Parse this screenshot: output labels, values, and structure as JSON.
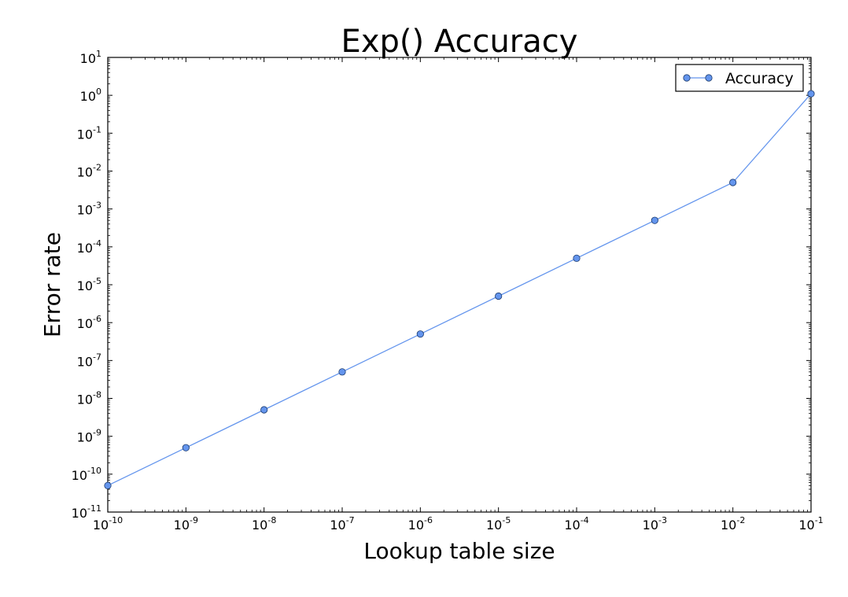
{
  "chart_data": {
    "type": "line",
    "title": "Exp() Accuracy",
    "xlabel": "Lookup table size",
    "ylabel": "Error rate",
    "xscale": "log",
    "yscale": "log",
    "xlim": [
      1e-10,
      0.1
    ],
    "ylim": [
      1e-11,
      10
    ],
    "grid": false,
    "legend_position": "top-right",
    "x_ticks": [
      {
        "base": "10",
        "exp": "-10",
        "value": 1e-10
      },
      {
        "base": "10",
        "exp": "-9",
        "value": 1e-09
      },
      {
        "base": "10",
        "exp": "-8",
        "value": 1e-08
      },
      {
        "base": "10",
        "exp": "-7",
        "value": 1e-07
      },
      {
        "base": "10",
        "exp": "-6",
        "value": 1e-06
      },
      {
        "base": "10",
        "exp": "-5",
        "value": 1e-05
      },
      {
        "base": "10",
        "exp": "-4",
        "value": 0.0001
      },
      {
        "base": "10",
        "exp": "-3",
        "value": 0.001
      },
      {
        "base": "10",
        "exp": "-2",
        "value": 0.01
      },
      {
        "base": "10",
        "exp": "-1",
        "value": 0.1
      }
    ],
    "y_ticks": [
      {
        "base": "10",
        "exp": "-11",
        "value": 1e-11
      },
      {
        "base": "10",
        "exp": "-10",
        "value": 1e-10
      },
      {
        "base": "10",
        "exp": "-9",
        "value": 1e-09
      },
      {
        "base": "10",
        "exp": "-8",
        "value": 1e-08
      },
      {
        "base": "10",
        "exp": "-7",
        "value": 1e-07
      },
      {
        "base": "10",
        "exp": "-6",
        "value": 1e-06
      },
      {
        "base": "10",
        "exp": "-5",
        "value": 1e-05
      },
      {
        "base": "10",
        "exp": "-4",
        "value": 0.0001
      },
      {
        "base": "10",
        "exp": "-3",
        "value": 0.001
      },
      {
        "base": "10",
        "exp": "-2",
        "value": 0.01
      },
      {
        "base": "10",
        "exp": "-1",
        "value": 0.1
      },
      {
        "base": "10",
        "exp": "0",
        "value": 1
      },
      {
        "base": "10",
        "exp": "1",
        "value": 10
      }
    ],
    "series": [
      {
        "name": "Accuracy",
        "color": "#6495ed",
        "marker_edge_color": "#1a3a6e",
        "marker": "circle",
        "x": [
          1e-10,
          1e-09,
          1e-08,
          1e-07,
          1e-06,
          1e-05,
          0.0001,
          0.001,
          0.01,
          0.1
        ],
        "y": [
          5e-11,
          5e-10,
          5e-09,
          5e-08,
          5e-07,
          5e-06,
          5e-05,
          0.0005,
          0.005,
          1.1
        ]
      }
    ]
  }
}
